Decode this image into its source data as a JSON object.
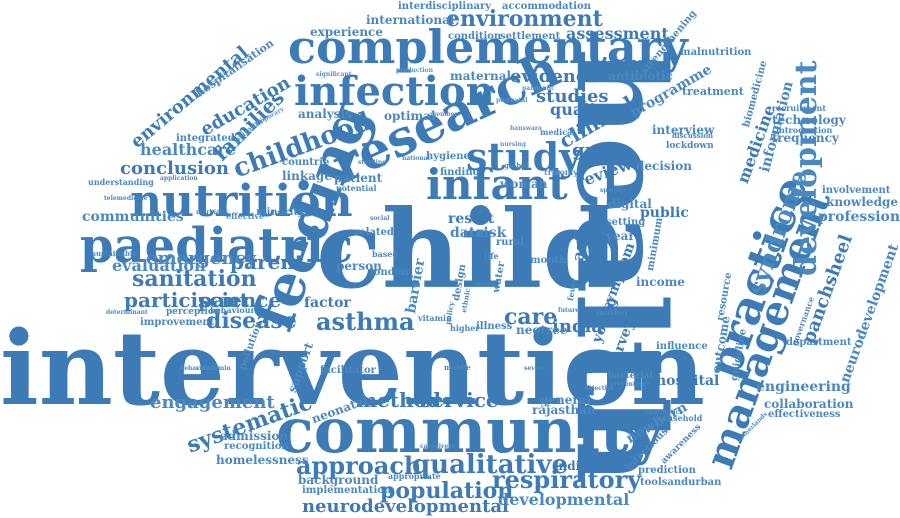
{
  "colors": {
    "primary": "#3c7bb6",
    "secondary": "#4a88c0",
    "light": "#5a93c8",
    "background": "#ffffff"
  },
  "words": {
    "intervention": "intervention",
    "child": "child",
    "health": "health",
    "community": "community",
    "complementary": "complementary",
    "research": "research",
    "infection": "infection",
    "infant": "infant",
    "feeding": "feeding",
    "nutrition": "nutrition",
    "paediatric": "paediatric",
    "practice": "practice",
    "management": "management",
    "development": "development",
    "syndrome": "syndrome",
    "study": "study",
    "environment": "environment",
    "childhood": "childhood",
    "approach": "approach",
    "qualitative": "qualitative",
    "population": "population",
    "neurodevelopmental": "neurodevelopmental",
    "developmental": "developmental",
    "respiratory": "respiratory",
    "asthma": "asthma",
    "disease": "disease",
    "method": "method",
    "service": "service",
    "systematic": "systematic",
    "engagement": "engagement",
    "sanitation": "sanitation",
    "parent": "parent",
    "participant": "participant",
    "science": "science",
    "emergency": "emergency",
    "evaluation": "evaluation",
    "communities": "communities",
    "conclusion": "conclusion",
    "healthcare": "healthcare",
    "environmental": "environmental",
    "education": "education",
    "families": "families",
    "hospitalisation": "hospitalisation",
    "experience": "experience",
    "international": "international",
    "assessment": "assessment",
    "interdisciplinary": "interdisciplinary",
    "accommodation": "accommodation",
    "condition": "condition",
    "settlement": "settlement",
    "evidence": "evidence",
    "studies": "studies",
    "quality": "quality",
    "programme": "programme",
    "antibiotic": "antibiotic",
    "maternal": "maternal",
    "clinical": "clinical",
    "group": "group",
    "review": "review",
    "decision": "decision",
    "interview": "interview",
    "medicine": "medicine",
    "information": "information",
    "biomedicine": "biomedicine",
    "malnutrition": "malnutrition",
    "strengthening": "strengthening",
    "treatment": "treatment",
    "technology": "technology",
    "frequency": "frequency",
    "introduction": "introduction",
    "recruitment": "recruitment",
    "knowledge": "knowledge",
    "involvement": "involvement",
    "professional": "professional",
    "panchsheel": "panchsheel",
    "neurodevelopment": "neurodevelopment",
    "engineering": "engineering",
    "collaboration": "collaboration",
    "effectiveness": "effectiveness",
    "hospital": "hospital",
    "outcome": "outcome",
    "resource": "resource",
    "guideline": "guideline",
    "department": "department",
    "governance": "governance",
    "newborn": "newborn",
    "infectious": "infectious",
    "awareness": "awareness",
    "prediction": "prediction",
    "toolsandurban": "toolsandurban",
    "individual": "individual",
    "setting": "setting",
    "young": "young",
    "survey": "survey",
    "india": "india",
    "care": "care",
    "public": "public",
    "income": "income",
    "influence": "influence",
    "bacterial": "bacterial",
    "prevention": "prevention",
    "household": "household",
    "month": "month",
    "asia": "asia",
    "digital": "digital",
    "year": "year",
    "symptom": "symptom",
    "minimum": "minimum",
    "lockdown": "lockdown",
    "discussion": "discussion",
    "data": "data",
    "risk": "risk",
    "rural": "rural",
    "result": "result",
    "barrier": "barrier",
    "woman": "woman",
    "finding": "finding",
    "hygiene": "hygiene",
    "patient": "patient",
    "linkage": "linkage",
    "countrie": "countrie",
    "integrated": "integrated",
    "analysis": "analysis",
    "optimal": "optimal",
    "understanding": "understanding",
    "application": "application",
    "telemedicine": "telemedicine",
    "morbidity": "morbidity",
    "effective": "effective",
    "minority": "minority",
    "related": "related",
    "sustainable": "sustainable",
    "determinant": "determinant",
    "perception": "perception",
    "behaviour": "behaviour",
    "improvement": "improvement",
    "factor": "factor",
    "person": "person",
    "london": "london",
    "vitamin": "vitamin",
    "illness": "illness",
    "neotree": "neotree",
    "higher": "higher",
    "mother": "mother",
    "future": "future",
    "admission": "admission",
    "recognition": "recognition",
    "homelessness": "homelessness",
    "pollution": "pollution",
    "cobalamin": "cobalamin",
    "behavioral": "behavioral",
    "support": "support",
    "facilitator": "facilitator",
    "neonatal": "neonatal",
    "background": "background",
    "implementation": "implementation",
    "caregivers": "caregivers",
    "appropriate": "appropriate",
    "general": "general",
    "rajasthan": "rajasthan",
    "objective": "objective",
    "informatics": "informatics",
    "netherlands": "netherlands",
    "significant": "significant",
    "production": "production",
    "pandemic": "pandemic",
    "postnatal": "postnatal",
    "member": "member",
    "banswara": "banswara",
    "temporary": "temporary",
    "primary": "primary",
    "nursing": "nursing",
    "trisomy": "trisomy",
    "specific": "specific",
    "social": "social",
    "life": "life",
    "design": "design",
    "water": "water",
    "fever": "fever",
    "ethnic": "ethnic",
    "policy": "policy",
    "level": "level",
    "based": "based",
    "national": "national",
    "potential": "potential",
    "stunting": "stunting",
    "global": "global",
    "mobile": "mobile",
    "severe": "severe",
    "medical": "medical"
  }
}
